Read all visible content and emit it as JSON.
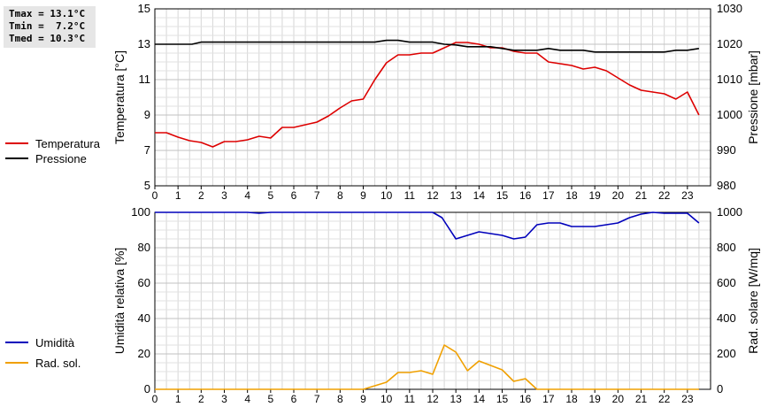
{
  "stats": {
    "tmax": "Tmax = 13.1°C",
    "tmin": "Tmin =  7.2°C",
    "tmed": "Tmed = 10.3°C"
  },
  "legend_top": [
    {
      "label": "Temperatura",
      "color": "#dd0000"
    },
    {
      "label": "Pressione",
      "color": "#000000"
    }
  ],
  "legend_bottom": [
    {
      "label": "Umidità",
      "color": "#0000bb"
    },
    {
      "label": "Rad. sol.",
      "color": "#f0a000"
    }
  ],
  "chart_data": [
    {
      "type": "line",
      "xlim": [
        0,
        24
      ],
      "x_ticks": [
        0,
        1,
        2,
        3,
        4,
        5,
        6,
        7,
        8,
        9,
        10,
        11,
        12,
        13,
        14,
        15,
        16,
        17,
        18,
        19,
        20,
        21,
        22,
        23
      ],
      "ylabel_left": "Temperatura [°C]",
      "ylim_left": [
        5,
        15
      ],
      "yticks_left": [
        5,
        7,
        9,
        11,
        13,
        15
      ],
      "ylabel_right": "Pressione [mbar]",
      "ylim_right": [
        980,
        1030
      ],
      "yticks_right": [
        980,
        990,
        1000,
        1010,
        1020,
        1030
      ],
      "grid": true,
      "series": [
        {
          "name": "Temperatura",
          "axis": "left",
          "color": "#dd0000",
          "points": [
            [
              0,
              8.0
            ],
            [
              0.5,
              8.0
            ],
            [
              1,
              7.75
            ],
            [
              1.5,
              7.55
            ],
            [
              2,
              7.45
            ],
            [
              2.5,
              7.2
            ],
            [
              3,
              7.5
            ],
            [
              3.5,
              7.5
            ],
            [
              4,
              7.6
            ],
            [
              4.5,
              7.8
            ],
            [
              5,
              7.7
            ],
            [
              5.5,
              8.3
            ],
            [
              6,
              8.3
            ],
            [
              6.5,
              8.45
            ],
            [
              7,
              8.6
            ],
            [
              7.5,
              8.95
            ],
            [
              8,
              9.4
            ],
            [
              8.5,
              9.8
            ],
            [
              9,
              9.9
            ],
            [
              9.5,
              11.0
            ],
            [
              10,
              11.95
            ],
            [
              10.5,
              12.4
            ],
            [
              11,
              12.4
            ],
            [
              11.5,
              12.5
            ],
            [
              12,
              12.5
            ],
            [
              12.5,
              12.8
            ],
            [
              13,
              13.1
            ],
            [
              13.5,
              13.1
            ],
            [
              14,
              13.0
            ],
            [
              14.5,
              12.8
            ],
            [
              15,
              12.8
            ],
            [
              15.5,
              12.6
            ],
            [
              16,
              12.5
            ],
            [
              16.5,
              12.5
            ],
            [
              17,
              12.0
            ],
            [
              17.5,
              11.9
            ],
            [
              18,
              11.8
            ],
            [
              18.5,
              11.6
            ],
            [
              19,
              11.7
            ],
            [
              19.5,
              11.5
            ],
            [
              20,
              11.1
            ],
            [
              20.5,
              10.7
            ],
            [
              21,
              10.4
            ],
            [
              21.5,
              10.3
            ],
            [
              22,
              10.2
            ],
            [
              22.5,
              9.9
            ],
            [
              23,
              10.3
            ],
            [
              23.5,
              9.0
            ]
          ]
        },
        {
          "name": "Pressione",
          "axis": "right",
          "color": "#000000",
          "points": [
            [
              0,
              1020
            ],
            [
              1,
              1020
            ],
            [
              1.6,
              1020
            ],
            [
              2,
              1020.6
            ],
            [
              3,
              1020.6
            ],
            [
              4,
              1020.6
            ],
            [
              5,
              1020.6
            ],
            [
              6,
              1020.6
            ],
            [
              7,
              1020.6
            ],
            [
              8,
              1020.6
            ],
            [
              9,
              1020.6
            ],
            [
              9.5,
              1020.6
            ],
            [
              10,
              1021.1
            ],
            [
              10.5,
              1021.1
            ],
            [
              11,
              1020.6
            ],
            [
              12,
              1020.6
            ],
            [
              12.5,
              1020
            ],
            [
              13,
              1019.8
            ],
            [
              13.5,
              1019.3
            ],
            [
              14,
              1019.3
            ],
            [
              14.5,
              1019.3
            ],
            [
              15,
              1018.8
            ],
            [
              15.5,
              1018.3
            ],
            [
              16,
              1018.3
            ],
            [
              16.5,
              1018.3
            ],
            [
              17,
              1018.8
            ],
            [
              17.5,
              1018.3
            ],
            [
              18,
              1018.3
            ],
            [
              18.5,
              1018.3
            ],
            [
              19,
              1017.8
            ],
            [
              20,
              1017.8
            ],
            [
              21,
              1017.8
            ],
            [
              22,
              1017.8
            ],
            [
              22.5,
              1018.3
            ],
            [
              23,
              1018.3
            ],
            [
              23.5,
              1018.8
            ]
          ]
        }
      ]
    },
    {
      "type": "line",
      "xlim": [
        0,
        24
      ],
      "x_ticks": [
        0,
        1,
        2,
        3,
        4,
        5,
        6,
        7,
        8,
        9,
        10,
        11,
        12,
        13,
        14,
        15,
        16,
        17,
        18,
        19,
        20,
        21,
        22,
        23
      ],
      "ylabel_left": "Umidità relativa [%]",
      "ylim_left": [
        0,
        100
      ],
      "yticks_left": [
        0,
        20,
        40,
        60,
        80,
        100
      ],
      "ylabel_right": "Rad. solare [W/mq]",
      "ylim_right": [
        0,
        1000
      ],
      "yticks_right": [
        0,
        200,
        400,
        600,
        800,
        1000
      ],
      "grid": true,
      "series": [
        {
          "name": "Umidità",
          "axis": "left",
          "color": "#0000bb",
          "points": [
            [
              0,
              100
            ],
            [
              4,
              100
            ],
            [
              4.5,
              99.5
            ],
            [
              5,
              100
            ],
            [
              12,
              100
            ],
            [
              12.4,
              97
            ],
            [
              12.6,
              93
            ],
            [
              13,
              85
            ],
            [
              13.5,
              87
            ],
            [
              14,
              89
            ],
            [
              14.5,
              88
            ],
            [
              15,
              87
            ],
            [
              15.5,
              85
            ],
            [
              16,
              86
            ],
            [
              16.5,
              93
            ],
            [
              17,
              94
            ],
            [
              17.5,
              94
            ],
            [
              18,
              92
            ],
            [
              19,
              92
            ],
            [
              19.5,
              93
            ],
            [
              20,
              94
            ],
            [
              20.5,
              97
            ],
            [
              21,
              99
            ],
            [
              21.5,
              100
            ],
            [
              22,
              99.5
            ],
            [
              23,
              99.5
            ],
            [
              23.5,
              94
            ]
          ]
        },
        {
          "name": "Rad. sol.",
          "axis": "right",
          "color": "#f0a000",
          "points": [
            [
              0,
              0
            ],
            [
              9,
              0
            ],
            [
              9.5,
              20
            ],
            [
              10,
              40
            ],
            [
              10.5,
              95
            ],
            [
              11,
              95
            ],
            [
              11.5,
              105
            ],
            [
              12,
              85
            ],
            [
              12.5,
              250
            ],
            [
              13,
              210
            ],
            [
              13.5,
              105
            ],
            [
              14,
              160
            ],
            [
              14.5,
              135
            ],
            [
              15,
              110
            ],
            [
              15.5,
              45
            ],
            [
              16,
              60
            ],
            [
              16.5,
              0
            ],
            [
              23.5,
              0
            ]
          ]
        }
      ]
    }
  ]
}
